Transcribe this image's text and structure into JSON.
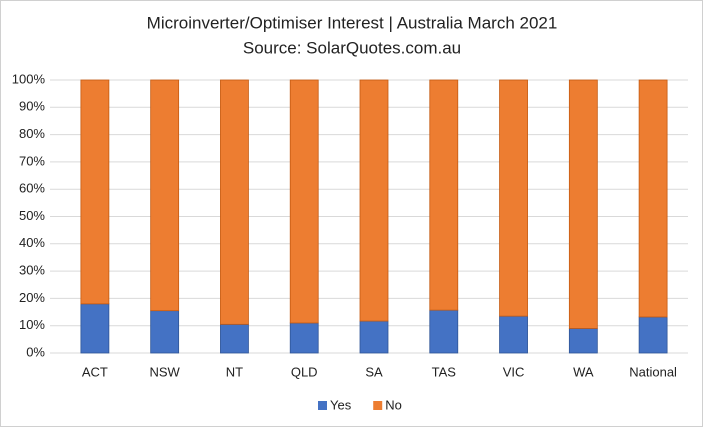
{
  "chart_data": {
    "type": "stacked-bar",
    "title": "Microinverter/Optimiser Interest | Australia March 2021",
    "subtitle": "Source: SolarQuotes.com.au",
    "categories": [
      "ACT",
      "NSW",
      "NT",
      "QLD",
      "SA",
      "TAS",
      "VIC",
      "WA",
      "National"
    ],
    "series": [
      {
        "name": "Yes",
        "color": "#4472c4",
        "values": [
          18,
          15.5,
          10.5,
          11,
          11.7,
          15.7,
          13.5,
          9,
          13.2
        ]
      },
      {
        "name": "No",
        "color": "#ed7d31",
        "values": [
          82,
          84.5,
          89.5,
          89,
          88.3,
          84.3,
          86.5,
          91,
          86.8
        ]
      }
    ],
    "ylim": [
      0,
      100
    ],
    "yticks": [
      {
        "value": 0,
        "label": "0%"
      },
      {
        "value": 10,
        "label": "10%"
      },
      {
        "value": 20,
        "label": "20%"
      },
      {
        "value": 30,
        "label": "30%"
      },
      {
        "value": 40,
        "label": "40%"
      },
      {
        "value": 50,
        "label": "50%"
      },
      {
        "value": 60,
        "label": "60%"
      },
      {
        "value": 70,
        "label": "70%"
      },
      {
        "value": 80,
        "label": "80%"
      },
      {
        "value": 90,
        "label": "90%"
      },
      {
        "value": 100,
        "label": "100%"
      }
    ],
    "grid": true,
    "legend": "bottom"
  }
}
